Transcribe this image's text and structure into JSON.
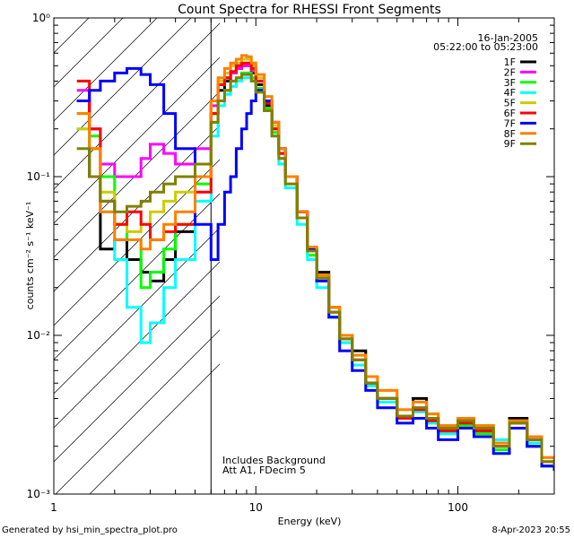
{
  "footer": {
    "generated": "Generated by hsi_min_spectra_plot.pro",
    "timestamp": "8-Apr-2023 20:55"
  },
  "chart_data": {
    "type": "line",
    "title": "Count Spectra for RHESSI Front Segments",
    "xlabel": "Energy (keV)",
    "ylabel": "counts cm⁻² s⁻¹ keV⁻¹",
    "x_scale": "log",
    "y_scale": "log",
    "xlim": [
      1.0,
      300.0
    ],
    "ylim": [
      0.001,
      1.0
    ],
    "x_ticks": [
      "1",
      "10",
      "100"
    ],
    "y_ticks": [
      "10⁻³",
      "10⁻²",
      "10⁻¹",
      "10⁰"
    ],
    "legend_position": "top-right",
    "info": {
      "date": "16-Jan-2005",
      "time_range": "05:22:00 to 05:23:00"
    },
    "annotations": [
      "Includes Background",
      "Att A1, FDecim  5"
    ],
    "hatched_region_below_keV": 6.0,
    "series": [
      {
        "name": "1F",
        "color": "#000000",
        "x": [
          1.3,
          1.5,
          1.7,
          2.0,
          2.3,
          2.7,
          3.0,
          3.5,
          4.0,
          5.0,
          6.0,
          6.5,
          7.0,
          7.5,
          8.0,
          8.5,
          9.0,
          9.5,
          10.0,
          11.0,
          12.0,
          13.0,
          14.0,
          16.0,
          18.0,
          20.0,
          23.0,
          26.0,
          30.0,
          35.0,
          40.0,
          50.0,
          60.0,
          70.0,
          80.0,
          100.0,
          120.0,
          150.0,
          180.0,
          220.0,
          260.0,
          300.0
        ],
        "y": [
          0.3,
          0.1,
          0.035,
          0.04,
          0.03,
          0.025,
          0.022,
          0.03,
          0.045,
          0.1,
          0.25,
          0.35,
          0.4,
          0.45,
          0.48,
          0.5,
          0.5,
          0.45,
          0.38,
          0.28,
          0.2,
          0.14,
          0.1,
          0.06,
          0.035,
          0.025,
          0.015,
          0.01,
          0.008,
          0.005,
          0.004,
          0.003,
          0.004,
          0.003,
          0.0025,
          0.003,
          0.0025,
          0.002,
          0.003,
          0.002,
          0.0015,
          0.0015
        ]
      },
      {
        "name": "2F",
        "color": "#ff00ff",
        "x": [
          1.3,
          1.5,
          1.7,
          2.0,
          2.3,
          2.7,
          3.0,
          3.5,
          4.0,
          5.0,
          6.0,
          6.5,
          7.0,
          7.5,
          8.0,
          8.5,
          9.0,
          9.5,
          10.0,
          11.0,
          12.0,
          13.0,
          14.0,
          16.0,
          18.0,
          20.0,
          23.0,
          26.0,
          30.0,
          35.0,
          40.0,
          50.0,
          60.0,
          70.0,
          80.0,
          100.0,
          120.0,
          150.0,
          180.0,
          220.0,
          260.0,
          300.0
        ],
        "y": [
          0.35,
          0.2,
          0.12,
          0.1,
          0.1,
          0.13,
          0.16,
          0.14,
          0.12,
          0.15,
          0.28,
          0.38,
          0.42,
          0.45,
          0.48,
          0.5,
          0.5,
          0.47,
          0.4,
          0.3,
          0.22,
          0.15,
          0.1,
          0.06,
          0.035,
          0.022,
          0.014,
          0.01,
          0.007,
          0.005,
          0.004,
          0.003,
          0.0035,
          0.003,
          0.0025,
          0.0028,
          0.0025,
          0.002,
          0.0028,
          0.0022,
          0.0016,
          0.0015
        ]
      },
      {
        "name": "3F",
        "color": "#00ff00",
        "x": [
          1.3,
          1.5,
          1.7,
          2.0,
          2.3,
          2.7,
          3.0,
          3.5,
          4.0,
          5.0,
          6.0,
          6.5,
          7.0,
          7.5,
          8.0,
          8.5,
          9.0,
          9.5,
          10.0,
          11.0,
          12.0,
          13.0,
          14.0,
          16.0,
          18.0,
          20.0,
          23.0,
          26.0,
          30.0,
          35.0,
          40.0,
          50.0,
          60.0,
          70.0,
          80.0,
          100.0,
          120.0,
          150.0,
          180.0,
          220.0,
          260.0,
          300.0
        ],
        "y": [
          0.25,
          0.18,
          0.1,
          0.05,
          0.04,
          0.02,
          0.025,
          0.035,
          0.05,
          0.09,
          0.22,
          0.3,
          0.35,
          0.4,
          0.42,
          0.45,
          0.45,
          0.42,
          0.36,
          0.27,
          0.19,
          0.13,
          0.09,
          0.055,
          0.032,
          0.022,
          0.013,
          0.009,
          0.007,
          0.005,
          0.004,
          0.003,
          0.0033,
          0.0028,
          0.0024,
          0.0027,
          0.0024,
          0.0019,
          0.0026,
          0.002,
          0.0015,
          0.0015
        ]
      },
      {
        "name": "4F",
        "color": "#00ffff",
        "x": [
          1.3,
          1.5,
          1.7,
          2.0,
          2.3,
          2.7,
          3.0,
          3.5,
          4.0,
          5.0,
          6.0,
          6.5,
          7.0,
          7.5,
          8.0,
          8.5,
          9.0,
          9.5,
          10.0,
          11.0,
          12.0,
          13.0,
          14.0,
          16.0,
          18.0,
          20.0,
          23.0,
          26.0,
          30.0,
          35.0,
          40.0,
          50.0,
          60.0,
          70.0,
          80.0,
          100.0,
          120.0,
          150.0,
          180.0,
          220.0,
          260.0,
          300.0
        ],
        "y": [
          0.2,
          0.15,
          0.06,
          0.03,
          0.015,
          0.009,
          0.012,
          0.02,
          0.03,
          0.07,
          0.18,
          0.28,
          0.33,
          0.37,
          0.4,
          0.42,
          0.42,
          0.4,
          0.35,
          0.26,
          0.18,
          0.12,
          0.085,
          0.05,
          0.03,
          0.02,
          0.013,
          0.009,
          0.0065,
          0.0048,
          0.0038,
          0.003,
          0.0033,
          0.0028,
          0.0024,
          0.0028,
          0.0026,
          0.0022,
          0.0028,
          0.0021,
          0.0016,
          0.0015
        ]
      },
      {
        "name": "5F",
        "color": "#cccc00",
        "x": [
          1.3,
          1.5,
          1.7,
          2.0,
          2.3,
          2.7,
          3.0,
          3.5,
          4.0,
          5.0,
          6.0,
          6.5,
          7.0,
          7.5,
          8.0,
          8.5,
          9.0,
          9.5,
          10.0,
          11.0,
          12.0,
          13.0,
          14.0,
          16.0,
          18.0,
          20.0,
          23.0,
          26.0,
          30.0,
          35.0,
          40.0,
          50.0,
          60.0,
          70.0,
          80.0,
          100.0,
          120.0,
          150.0,
          180.0,
          220.0,
          260.0,
          300.0
        ],
        "y": [
          0.2,
          0.15,
          0.08,
          0.05,
          0.045,
          0.05,
          0.06,
          0.07,
          0.08,
          0.12,
          0.3,
          0.4,
          0.45,
          0.5,
          0.52,
          0.55,
          0.55,
          0.5,
          0.42,
          0.3,
          0.21,
          0.15,
          0.1,
          0.06,
          0.036,
          0.024,
          0.015,
          0.01,
          0.0075,
          0.0055,
          0.0045,
          0.0034,
          0.0038,
          0.0032,
          0.0027,
          0.003,
          0.0027,
          0.0021,
          0.0029,
          0.0023,
          0.0017,
          0.0016
        ]
      },
      {
        "name": "6F",
        "color": "#ff0000",
        "x": [
          1.3,
          1.5,
          1.7,
          2.0,
          2.3,
          2.7,
          3.0,
          3.5,
          4.0,
          5.0,
          6.0,
          6.5,
          7.0,
          7.5,
          8.0,
          8.5,
          9.0,
          9.5,
          10.0,
          11.0,
          12.0,
          13.0,
          14.0,
          16.0,
          18.0,
          20.0,
          23.0,
          26.0,
          30.0,
          35.0,
          40.0,
          50.0,
          60.0,
          70.0,
          80.0,
          100.0,
          120.0,
          150.0,
          180.0,
          220.0,
          260.0,
          300.0
        ],
        "y": [
          0.4,
          0.2,
          0.07,
          0.05,
          0.06,
          0.05,
          0.04,
          0.045,
          0.05,
          0.08,
          0.25,
          0.38,
          0.42,
          0.46,
          0.5,
          0.52,
          0.52,
          0.48,
          0.4,
          0.29,
          0.2,
          0.14,
          0.1,
          0.06,
          0.035,
          0.023,
          0.014,
          0.0095,
          0.007,
          0.005,
          0.004,
          0.003,
          0.0034,
          0.0029,
          0.0025,
          0.0028,
          0.0025,
          0.002,
          0.0028,
          0.0022,
          0.0016,
          0.0015
        ]
      },
      {
        "name": "7F",
        "color": "#0000ff",
        "x": [
          1.3,
          1.5,
          1.7,
          2.0,
          2.3,
          2.7,
          3.0,
          3.5,
          4.0,
          5.0,
          6.0,
          6.5,
          7.0,
          7.5,
          8.0,
          8.5,
          9.0,
          9.5,
          10.0,
          11.0,
          12.0,
          13.0,
          14.0,
          16.0,
          18.0,
          20.0,
          23.0,
          26.0,
          30.0,
          35.0,
          40.0,
          50.0,
          60.0,
          70.0,
          80.0,
          100.0,
          120.0,
          150.0,
          180.0,
          220.0,
          260.0,
          300.0
        ],
        "y": [
          0.3,
          0.35,
          0.4,
          0.45,
          0.48,
          0.44,
          0.38,
          0.25,
          0.15,
          0.05,
          0.03,
          0.05,
          0.08,
          0.1,
          0.15,
          0.2,
          0.25,
          0.3,
          0.35,
          0.3,
          0.22,
          0.15,
          0.1,
          0.06,
          0.035,
          0.022,
          0.013,
          0.008,
          0.006,
          0.0045,
          0.0035,
          0.0028,
          0.003,
          0.0026,
          0.0022,
          0.0026,
          0.0023,
          0.0018,
          0.0026,
          0.002,
          0.0015,
          0.0014
        ]
      },
      {
        "name": "8F",
        "color": "#ff8000",
        "x": [
          1.3,
          1.5,
          1.7,
          2.0,
          2.3,
          2.7,
          3.0,
          3.5,
          4.0,
          5.0,
          6.0,
          6.5,
          7.0,
          7.5,
          8.0,
          8.5,
          9.0,
          9.5,
          10.0,
          11.0,
          12.0,
          13.0,
          14.0,
          16.0,
          18.0,
          20.0,
          23.0,
          26.0,
          30.0,
          35.0,
          40.0,
          50.0,
          60.0,
          70.0,
          80.0,
          100.0,
          120.0,
          150.0,
          180.0,
          220.0,
          260.0,
          300.0
        ],
        "y": [
          0.25,
          0.15,
          0.06,
          0.04,
          0.04,
          0.035,
          0.04,
          0.05,
          0.06,
          0.1,
          0.3,
          0.42,
          0.48,
          0.52,
          0.55,
          0.58,
          0.57,
          0.52,
          0.44,
          0.32,
          0.22,
          0.15,
          0.1,
          0.06,
          0.036,
          0.024,
          0.015,
          0.01,
          0.0075,
          0.0055,
          0.0045,
          0.0034,
          0.0038,
          0.0032,
          0.0027,
          0.003,
          0.0027,
          0.0021,
          0.0029,
          0.0023,
          0.0017,
          0.0016
        ]
      },
      {
        "name": "9F",
        "color": "#808000",
        "x": [
          1.3,
          1.5,
          1.7,
          2.0,
          2.3,
          2.7,
          3.0,
          3.5,
          4.0,
          5.0,
          6.0,
          6.5,
          7.0,
          7.5,
          8.0,
          8.5,
          9.0,
          9.5,
          10.0,
          11.0,
          12.0,
          13.0,
          14.0,
          16.0,
          18.0,
          20.0,
          23.0,
          26.0,
          30.0,
          35.0,
          40.0,
          50.0,
          60.0,
          70.0,
          80.0,
          100.0,
          120.0,
          150.0,
          180.0,
          220.0,
          260.0,
          300.0
        ],
        "y": [
          0.15,
          0.1,
          0.07,
          0.06,
          0.065,
          0.07,
          0.08,
          0.09,
          0.1,
          0.12,
          0.22,
          0.3,
          0.35,
          0.4,
          0.42,
          0.44,
          0.44,
          0.4,
          0.34,
          0.26,
          0.18,
          0.13,
          0.09,
          0.055,
          0.034,
          0.023,
          0.014,
          0.0095,
          0.007,
          0.005,
          0.004,
          0.0031,
          0.0035,
          0.003,
          0.0026,
          0.0029,
          0.0026,
          0.002,
          0.0028,
          0.0022,
          0.0016,
          0.0015
        ]
      }
    ]
  }
}
